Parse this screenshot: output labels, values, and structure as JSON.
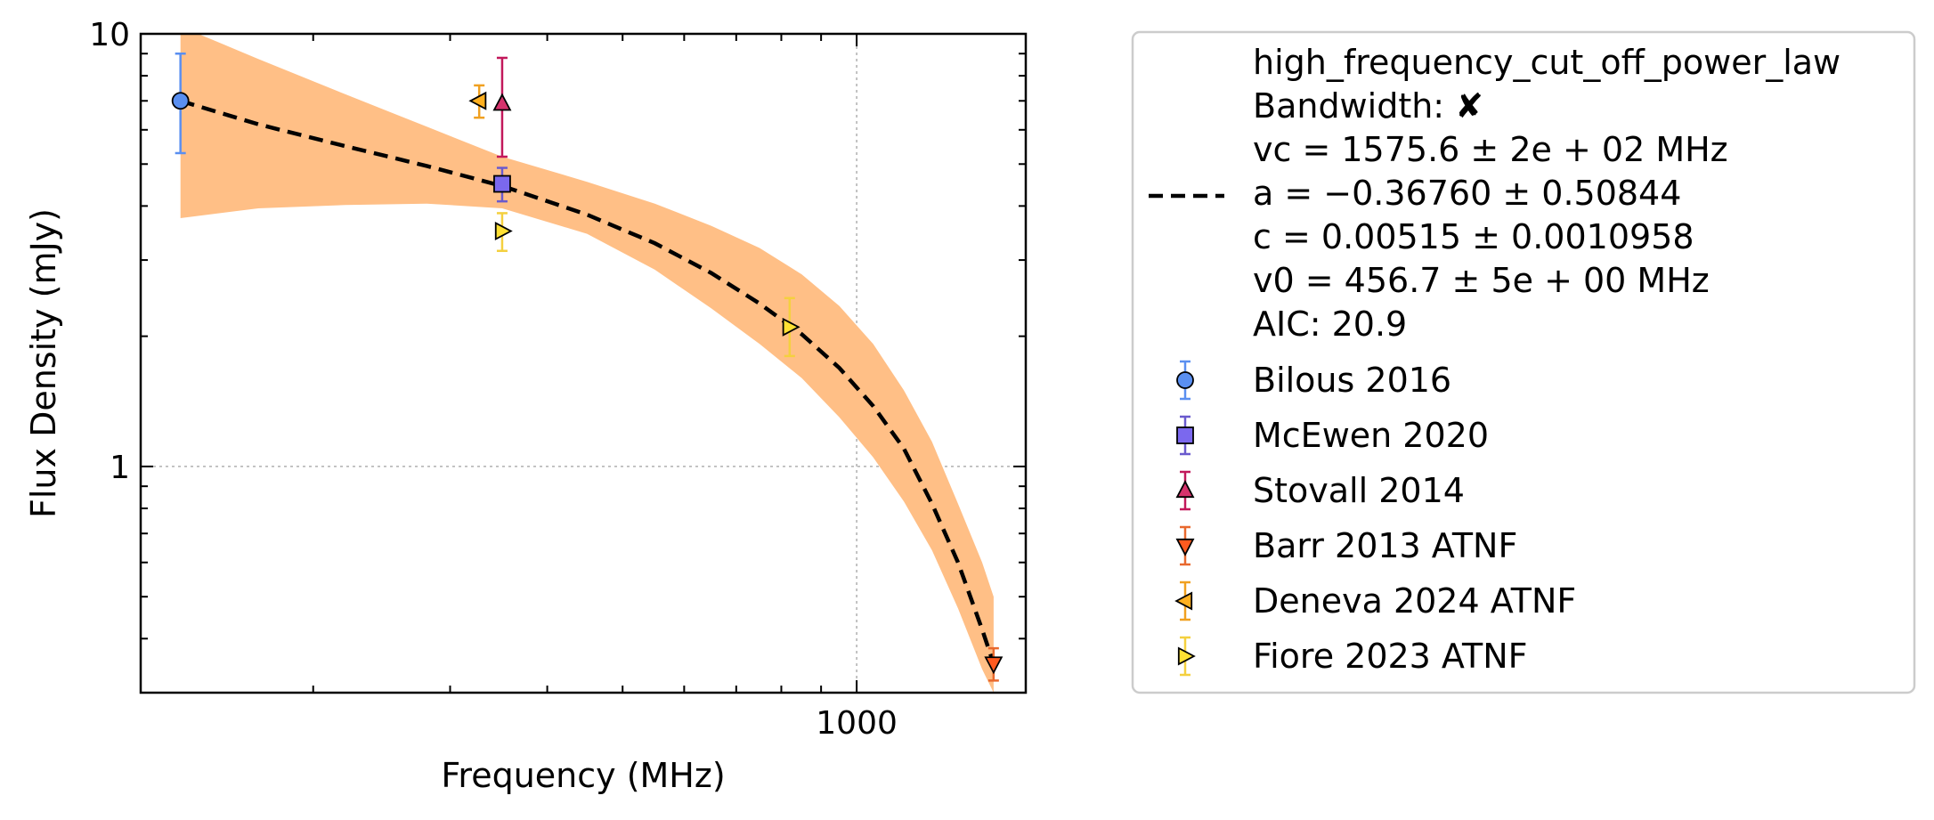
{
  "chart_data": {
    "type": "scatter",
    "xlabel": "Frequency (MHz)",
    "ylabel": "Flux Density (mJy)",
    "x_scale": "log",
    "y_scale": "log",
    "xlim": [
      120,
      1650
    ],
    "ylim": [
      0.3,
      10
    ],
    "x_tick_labels": [
      {
        "value": 1000,
        "label": "1000"
      }
    ],
    "y_tick_labels": [
      {
        "value": 1,
        "label": "1"
      },
      {
        "value": 10,
        "label": "10"
      }
    ],
    "grid": true,
    "legend_position": "outside-right",
    "fit": {
      "model": "high_frequency_cut_off_power_law",
      "label_lines": [
        "high_frequency_cut_off_power_law",
        "Bandwidth: ✘",
        "vc = 1575.6 ± 2e + 02 MHz",
        "a = −0.36760 ± 0.50844",
        "c = 0.00515 ± 0.0010958",
        "v0 = 456.7 ± 5e + 00 MHz",
        "AIC: 20.9"
      ],
      "line_color": "#000000",
      "band_color": "#ffbf86",
      "curve": {
        "x": [
          135,
          170,
          220,
          280,
          350,
          450,
          550,
          650,
          750,
          850,
          950,
          1050,
          1150,
          1250,
          1350,
          1450,
          1500
        ],
        "y": [
          7.0,
          6.18,
          5.5,
          4.95,
          4.45,
          3.82,
          3.28,
          2.8,
          2.38,
          2.02,
          1.69,
          1.38,
          1.1,
          0.82,
          0.6,
          0.42,
          0.35
        ]
      },
      "band_upper": [
        10.4,
        8.75,
        7.25,
        6.1,
        5.2,
        4.55,
        4.05,
        3.6,
        3.2,
        2.78,
        2.35,
        1.92,
        1.5,
        1.14,
        0.82,
        0.6,
        0.5
      ],
      "band_lower": [
        3.75,
        3.95,
        4.02,
        4.05,
        3.95,
        3.45,
        2.85,
        2.32,
        1.92,
        1.6,
        1.3,
        1.05,
        0.83,
        0.64,
        0.47,
        0.34,
        0.3
      ]
    },
    "series": [
      {
        "name": "Bilous 2016",
        "marker": "circle",
        "color": "#5a8ff0",
        "err_color": "#5a8ff0",
        "points": [
          {
            "x": 135,
            "y": 7.0,
            "err_low": 1.7,
            "err_high": 2.0
          }
        ]
      },
      {
        "name": "McEwen 2020",
        "marker": "square",
        "color": "#7b68ee",
        "err_color": "#6a5acd",
        "points": [
          {
            "x": 350,
            "y": 4.5,
            "err_low": 0.4,
            "err_high": 0.4
          }
        ]
      },
      {
        "name": "Stovall 2014",
        "marker": "triangle-up",
        "color": "#d6336c",
        "err_color": "#c2185b",
        "points": [
          {
            "x": 350,
            "y": 6.9,
            "err_low": 1.7,
            "err_high": 1.9
          }
        ]
      },
      {
        "name": "Barr 2013 ATNF",
        "marker": "triangle-down",
        "color": "#ff5a1f",
        "err_color": "#e8692e",
        "points": [
          {
            "x": 1500,
            "y": 0.35,
            "err_low": 0.03,
            "err_high": 0.03
          }
        ]
      },
      {
        "name": "Deneva 2024 ATNF",
        "marker": "triangle-left",
        "color": "#ffb020",
        "err_color": "#f0a020",
        "points": [
          {
            "x": 327,
            "y": 7.0,
            "err_low": 0.6,
            "err_high": 0.6
          }
        ]
      },
      {
        "name": "Fiore 2023 ATNF",
        "marker": "triangle-right",
        "color": "#ffe033",
        "err_color": "#f4d03f",
        "points": [
          {
            "x": 350,
            "y": 3.5,
            "err_low": 0.35,
            "err_high": 0.35
          },
          {
            "x": 820,
            "y": 2.1,
            "err_low": 0.3,
            "err_high": 0.35
          }
        ]
      }
    ]
  }
}
